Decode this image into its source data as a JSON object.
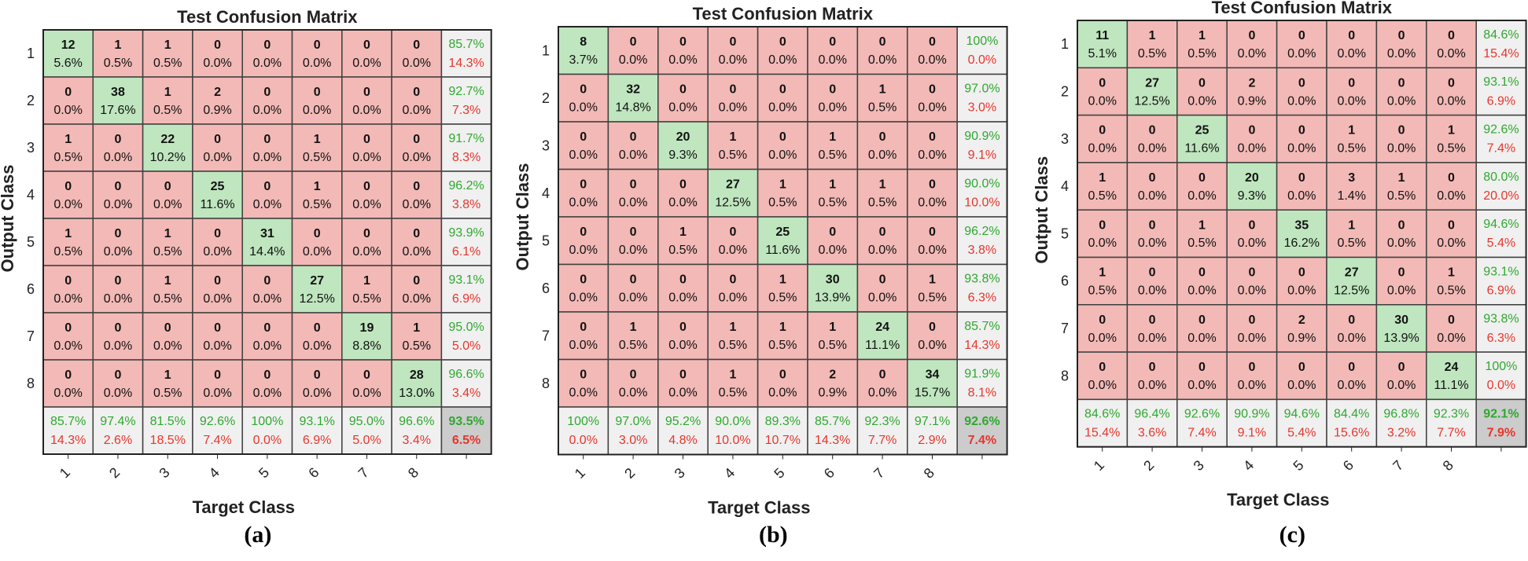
{
  "colors": {
    "diag": "#bfe6bf",
    "off": "#f2b9b6",
    "summary": "#f0f0f0",
    "corner": "#cccccc",
    "grid": "#404040",
    "green_text": "#2fa82f",
    "red_text": "#e8352b"
  },
  "chart_data": [
    {
      "type": "heatmap",
      "title": "Test Confusion Matrix",
      "xlabel": "Target Class",
      "ylabel": "Output Class",
      "caption": "(a)",
      "classes": [
        "1",
        "2",
        "3",
        "4",
        "5",
        "6",
        "7",
        "8"
      ],
      "counts": [
        [
          12,
          1,
          1,
          0,
          0,
          0,
          0,
          0
        ],
        [
          0,
          38,
          1,
          2,
          0,
          0,
          0,
          0
        ],
        [
          1,
          0,
          22,
          0,
          0,
          1,
          0,
          0
        ],
        [
          0,
          0,
          0,
          25,
          0,
          1,
          0,
          0
        ],
        [
          1,
          0,
          1,
          0,
          31,
          0,
          0,
          0
        ],
        [
          0,
          0,
          1,
          0,
          0,
          27,
          1,
          0
        ],
        [
          0,
          0,
          0,
          0,
          0,
          0,
          19,
          1
        ],
        [
          0,
          0,
          1,
          0,
          0,
          0,
          0,
          28
        ]
      ],
      "percents": [
        [
          "5.6%",
          "0.5%",
          "0.5%",
          "0.0%",
          "0.0%",
          "0.0%",
          "0.0%",
          "0.0%"
        ],
        [
          "0.0%",
          "17.6%",
          "0.5%",
          "0.9%",
          "0.0%",
          "0.0%",
          "0.0%",
          "0.0%"
        ],
        [
          "0.5%",
          "0.0%",
          "10.2%",
          "0.0%",
          "0.0%",
          "0.5%",
          "0.0%",
          "0.0%"
        ],
        [
          "0.0%",
          "0.0%",
          "0.0%",
          "11.6%",
          "0.0%",
          "0.5%",
          "0.0%",
          "0.0%"
        ],
        [
          "0.5%",
          "0.0%",
          "0.5%",
          "0.0%",
          "14.4%",
          "0.0%",
          "0.0%",
          "0.0%"
        ],
        [
          "0.0%",
          "0.0%",
          "0.5%",
          "0.0%",
          "0.0%",
          "12.5%",
          "0.5%",
          "0.0%"
        ],
        [
          "0.0%",
          "0.0%",
          "0.0%",
          "0.0%",
          "0.0%",
          "0.0%",
          "8.8%",
          "0.5%"
        ],
        [
          "0.0%",
          "0.0%",
          "0.5%",
          "0.0%",
          "0.0%",
          "0.0%",
          "0.0%",
          "13.0%"
        ]
      ],
      "row_summary": [
        [
          "85.7%",
          "14.3%"
        ],
        [
          "92.7%",
          "7.3%"
        ],
        [
          "91.7%",
          "8.3%"
        ],
        [
          "96.2%",
          "3.8%"
        ],
        [
          "93.9%",
          "6.1%"
        ],
        [
          "93.1%",
          "6.9%"
        ],
        [
          "95.0%",
          "5.0%"
        ],
        [
          "96.6%",
          "3.4%"
        ]
      ],
      "col_summary": [
        [
          "85.7%",
          "14.3%"
        ],
        [
          "97.4%",
          "2.6%"
        ],
        [
          "81.5%",
          "18.5%"
        ],
        [
          "92.6%",
          "7.4%"
        ],
        [
          "100%",
          "0.0%"
        ],
        [
          "93.1%",
          "6.9%"
        ],
        [
          "95.0%",
          "5.0%"
        ],
        [
          "96.6%",
          "3.4%"
        ]
      ],
      "overall": [
        "93.5%",
        "6.5%"
      ]
    },
    {
      "type": "heatmap",
      "title": "Test Confusion Matrix",
      "xlabel": "Target Class",
      "ylabel": "Output Class",
      "caption": "(b)",
      "classes": [
        "1",
        "2",
        "3",
        "4",
        "5",
        "6",
        "7",
        "8"
      ],
      "counts": [
        [
          8,
          0,
          0,
          0,
          0,
          0,
          0,
          0
        ],
        [
          0,
          32,
          0,
          0,
          0,
          0,
          1,
          0
        ],
        [
          0,
          0,
          20,
          1,
          0,
          1,
          0,
          0
        ],
        [
          0,
          0,
          0,
          27,
          1,
          1,
          1,
          0
        ],
        [
          0,
          0,
          1,
          0,
          25,
          0,
          0,
          0
        ],
        [
          0,
          0,
          0,
          0,
          1,
          30,
          0,
          1
        ],
        [
          0,
          1,
          0,
          1,
          1,
          1,
          24,
          0
        ],
        [
          0,
          0,
          0,
          1,
          0,
          2,
          0,
          34
        ]
      ],
      "percents": [
        [
          "3.7%",
          "0.0%",
          "0.0%",
          "0.0%",
          "0.0%",
          "0.0%",
          "0.0%",
          "0.0%"
        ],
        [
          "0.0%",
          "14.8%",
          "0.0%",
          "0.0%",
          "0.0%",
          "0.0%",
          "0.5%",
          "0.0%"
        ],
        [
          "0.0%",
          "0.0%",
          "9.3%",
          "0.5%",
          "0.0%",
          "0.5%",
          "0.0%",
          "0.0%"
        ],
        [
          "0.0%",
          "0.0%",
          "0.0%",
          "12.5%",
          "0.5%",
          "0.5%",
          "0.5%",
          "0.0%"
        ],
        [
          "0.0%",
          "0.0%",
          "0.5%",
          "0.0%",
          "11.6%",
          "0.0%",
          "0.0%",
          "0.0%"
        ],
        [
          "0.0%",
          "0.0%",
          "0.0%",
          "0.0%",
          "0.5%",
          "13.9%",
          "0.0%",
          "0.5%"
        ],
        [
          "0.0%",
          "0.5%",
          "0.0%",
          "0.5%",
          "0.5%",
          "0.5%",
          "11.1%",
          "0.0%"
        ],
        [
          "0.0%",
          "0.0%",
          "0.0%",
          "0.5%",
          "0.0%",
          "0.9%",
          "0.0%",
          "15.7%"
        ]
      ],
      "row_summary": [
        [
          "100%",
          "0.0%"
        ],
        [
          "97.0%",
          "3.0%"
        ],
        [
          "90.9%",
          "9.1%"
        ],
        [
          "90.0%",
          "10.0%"
        ],
        [
          "96.2%",
          "3.8%"
        ],
        [
          "93.8%",
          "6.3%"
        ],
        [
          "85.7%",
          "14.3%"
        ],
        [
          "91.9%",
          "8.1%"
        ]
      ],
      "col_summary": [
        [
          "100%",
          "0.0%"
        ],
        [
          "97.0%",
          "3.0%"
        ],
        [
          "95.2%",
          "4.8%"
        ],
        [
          "90.0%",
          "10.0%"
        ],
        [
          "89.3%",
          "10.7%"
        ],
        [
          "85.7%",
          "14.3%"
        ],
        [
          "92.3%",
          "7.7%"
        ],
        [
          "97.1%",
          "2.9%"
        ]
      ],
      "overall": [
        "92.6%",
        "7.4%"
      ]
    },
    {
      "type": "heatmap",
      "title": "Test Confusion Matrix",
      "xlabel": "Target Class",
      "ylabel": "Output Class",
      "caption": "(c)",
      "classes": [
        "1",
        "2",
        "3",
        "4",
        "5",
        "6",
        "7",
        "8"
      ],
      "counts": [
        [
          11,
          1,
          1,
          0,
          0,
          0,
          0,
          0
        ],
        [
          0,
          27,
          0,
          2,
          0,
          0,
          0,
          0
        ],
        [
          0,
          0,
          25,
          0,
          0,
          1,
          0,
          1
        ],
        [
          1,
          0,
          0,
          20,
          0,
          3,
          1,
          0
        ],
        [
          0,
          0,
          1,
          0,
          35,
          1,
          0,
          0
        ],
        [
          1,
          0,
          0,
          0,
          0,
          27,
          0,
          1
        ],
        [
          0,
          0,
          0,
          0,
          2,
          0,
          30,
          0
        ],
        [
          0,
          0,
          0,
          0,
          0,
          0,
          0,
          24
        ]
      ],
      "percents": [
        [
          "5.1%",
          "0.5%",
          "0.5%",
          "0.0%",
          "0.0%",
          "0.0%",
          "0.0%",
          "0.0%"
        ],
        [
          "0.0%",
          "12.5%",
          "0.0%",
          "0.9%",
          "0.0%",
          "0.0%",
          "0.0%",
          "0.0%"
        ],
        [
          "0.0%",
          "0.0%",
          "11.6%",
          "0.0%",
          "0.0%",
          "0.5%",
          "0.0%",
          "0.5%"
        ],
        [
          "0.5%",
          "0.0%",
          "0.0%",
          "9.3%",
          "0.0%",
          "1.4%",
          "0.5%",
          "0.0%"
        ],
        [
          "0.0%",
          "0.0%",
          "0.5%",
          "0.0%",
          "16.2%",
          "0.5%",
          "0.0%",
          "0.0%"
        ],
        [
          "0.5%",
          "0.0%",
          "0.0%",
          "0.0%",
          "0.0%",
          "12.5%",
          "0.0%",
          "0.5%"
        ],
        [
          "0.0%",
          "0.0%",
          "0.0%",
          "0.0%",
          "0.9%",
          "0.0%",
          "13.9%",
          "0.0%"
        ],
        [
          "0.0%",
          "0.0%",
          "0.0%",
          "0.0%",
          "0.0%",
          "0.0%",
          "0.0%",
          "11.1%"
        ]
      ],
      "row_summary": [
        [
          "84.6%",
          "15.4%"
        ],
        [
          "93.1%",
          "6.9%"
        ],
        [
          "92.6%",
          "7.4%"
        ],
        [
          "80.0%",
          "20.0%"
        ],
        [
          "94.6%",
          "5.4%"
        ],
        [
          "93.1%",
          "6.9%"
        ],
        [
          "93.8%",
          "6.3%"
        ],
        [
          "100%",
          "0.0%"
        ]
      ],
      "col_summary": [
        [
          "84.6%",
          "15.4%"
        ],
        [
          "96.4%",
          "3.6%"
        ],
        [
          "92.6%",
          "7.4%"
        ],
        [
          "90.9%",
          "9.1%"
        ],
        [
          "94.6%",
          "5.4%"
        ],
        [
          "84.4%",
          "15.6%"
        ],
        [
          "96.8%",
          "3.2%"
        ],
        [
          "92.3%",
          "7.7%"
        ]
      ],
      "overall": [
        "92.1%",
        "7.9%"
      ]
    }
  ]
}
